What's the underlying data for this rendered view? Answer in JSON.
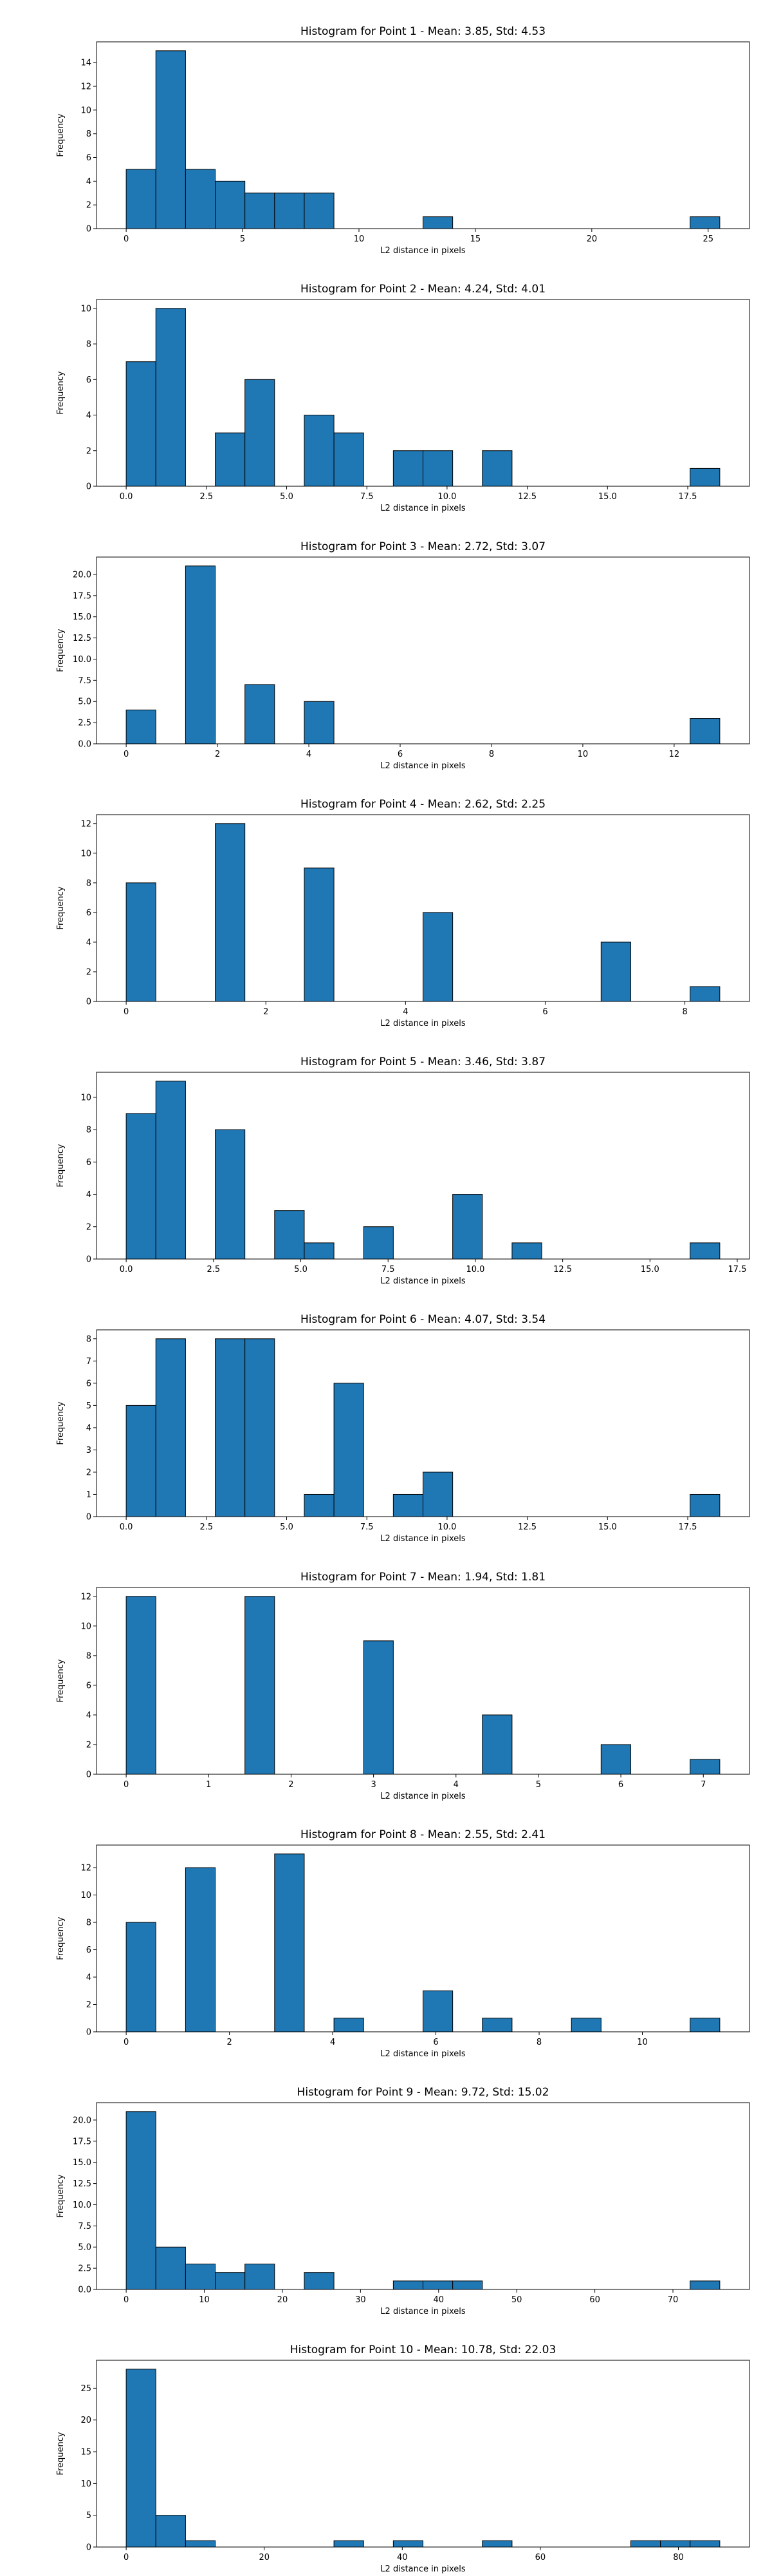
{
  "chart_data": [
    {
      "type": "bar",
      "title": "Histogram for Point 1 - Mean: 3.85, Std: 4.53",
      "xlabel": "L2 distance in pixels",
      "ylabel": "Frequency",
      "xlim": [
        -1.275,
        26.775
      ],
      "ylim": [
        0,
        15.75
      ],
      "xticks": [
        0,
        5,
        10,
        15,
        20,
        25
      ],
      "xtick_labels": [
        "0",
        "5",
        "10",
        "15",
        "20",
        "25"
      ],
      "yticks": [
        0,
        2,
        4,
        6,
        8,
        10,
        12,
        14
      ],
      "ytick_labels": [
        "0",
        "2",
        "4",
        "6",
        "8",
        "10",
        "12",
        "14"
      ],
      "bin_edges": [
        0,
        1.275,
        2.55,
        3.825,
        5.1,
        6.375,
        7.65,
        8.925,
        10.2,
        11.475,
        12.75,
        14.025,
        15.3,
        16.575,
        17.85,
        19.125,
        20.4,
        21.675,
        22.95,
        24.225,
        25.5
      ],
      "values": [
        5,
        15,
        5,
        4,
        3,
        3,
        3,
        0,
        0,
        0,
        1,
        0,
        0,
        0,
        0,
        0,
        0,
        0,
        0,
        1
      ],
      "color": "#1f77b4",
      "grid": false
    },
    {
      "type": "bar",
      "title": "Histogram for Point 2 - Mean: 4.24, Std: 4.01",
      "xlabel": "L2 distance in pixels",
      "ylabel": "Frequency",
      "xlim": [
        -0.925,
        19.425
      ],
      "ylim": [
        0,
        10.5
      ],
      "xticks": [
        0,
        2.5,
        5,
        7.5,
        10,
        12.5,
        15,
        17.5
      ],
      "xtick_labels": [
        "0.0",
        "2.5",
        "5.0",
        "7.5",
        "10.0",
        "12.5",
        "15.0",
        "17.5"
      ],
      "yticks": [
        0,
        2,
        4,
        6,
        8,
        10
      ],
      "ytick_labels": [
        "0",
        "2",
        "4",
        "6",
        "8",
        "10"
      ],
      "bin_edges": [
        0,
        0.925,
        1.85,
        2.775,
        3.7,
        4.625,
        5.55,
        6.475,
        7.4,
        8.325,
        9.25,
        10.175,
        11.1,
        12.025,
        12.95,
        13.875,
        14.8,
        15.725,
        16.65,
        17.575,
        18.5
      ],
      "values": [
        7,
        10,
        0,
        3,
        6,
        0,
        4,
        3,
        0,
        2,
        2,
        0,
        2,
        0,
        0,
        0,
        0,
        0,
        0,
        1
      ],
      "color": "#1f77b4",
      "grid": false
    },
    {
      "type": "bar",
      "title": "Histogram for Point 3 - Mean: 2.72, Std: 3.07",
      "xlabel": "L2 distance in pixels",
      "ylabel": "Frequency",
      "xlim": [
        -0.65,
        13.65
      ],
      "ylim": [
        0,
        22.05
      ],
      "xticks": [
        0,
        2,
        4,
        6,
        8,
        10,
        12
      ],
      "xtick_labels": [
        "0",
        "2",
        "4",
        "6",
        "8",
        "10",
        "12"
      ],
      "yticks": [
        0,
        2.5,
        5,
        7.5,
        10,
        12.5,
        15,
        17.5,
        20
      ],
      "ytick_labels": [
        "0.0",
        "2.5",
        "5.0",
        "7.5",
        "10.0",
        "12.5",
        "15.0",
        "17.5",
        "20.0"
      ],
      "bin_edges": [
        0,
        0.65,
        1.3,
        1.95,
        2.6,
        3.25,
        3.9,
        4.55,
        5.2,
        5.85,
        6.5,
        7.15,
        7.8,
        8.45,
        9.1,
        9.75,
        10.4,
        11.05,
        11.7,
        12.35,
        13
      ],
      "values": [
        4,
        0,
        21,
        0,
        7,
        0,
        5,
        0,
        0,
        0,
        0,
        0,
        0,
        0,
        0,
        0,
        0,
        0,
        0,
        3
      ],
      "color": "#1f77b4",
      "grid": false
    },
    {
      "type": "bar",
      "title": "Histogram for Point 4 - Mean: 2.62, Std: 2.25",
      "xlabel": "L2 distance in pixels",
      "ylabel": "Frequency",
      "xlim": [
        -0.425,
        8.925
      ],
      "ylim": [
        0,
        12.6
      ],
      "xticks": [
        0,
        2,
        4,
        6,
        8
      ],
      "xtick_labels": [
        "0",
        "2",
        "4",
        "6",
        "8"
      ],
      "yticks": [
        0,
        2,
        4,
        6,
        8,
        10,
        12
      ],
      "ytick_labels": [
        "0",
        "2",
        "4",
        "6",
        "8",
        "10",
        "12"
      ],
      "bin_edges": [
        0,
        0.425,
        0.85,
        1.275,
        1.7,
        2.125,
        2.55,
        2.975,
        3.4,
        3.825,
        4.25,
        4.675,
        5.1,
        5.525,
        5.95,
        6.375,
        6.8,
        7.225,
        7.65,
        8.075,
        8.5
      ],
      "values": [
        8,
        0,
        0,
        12,
        0,
        0,
        9,
        0,
        0,
        0,
        6,
        0,
        0,
        0,
        0,
        0,
        4,
        0,
        0,
        1
      ],
      "color": "#1f77b4",
      "grid": false
    },
    {
      "type": "bar",
      "title": "Histogram for Point 5 - Mean: 3.46, Std: 3.87",
      "xlabel": "L2 distance in pixels",
      "ylabel": "Frequency",
      "xlim": [
        -0.85,
        17.85
      ],
      "ylim": [
        0,
        11.55
      ],
      "xticks": [
        0,
        2.5,
        5,
        7.5,
        10,
        12.5,
        15,
        17.5
      ],
      "xtick_labels": [
        "0.0",
        "2.5",
        "5.0",
        "7.5",
        "10.0",
        "12.5",
        "15.0",
        "17.5"
      ],
      "yticks": [
        0,
        2,
        4,
        6,
        8,
        10
      ],
      "ytick_labels": [
        "0",
        "2",
        "4",
        "6",
        "8",
        "10"
      ],
      "bin_edges": [
        0,
        0.85,
        1.7,
        2.55,
        3.4,
        4.25,
        5.1,
        5.95,
        6.8,
        7.65,
        8.5,
        9.35,
        10.2,
        11.05,
        11.9,
        12.75,
        13.6,
        14.45,
        15.3,
        16.15,
        17
      ],
      "values": [
        9,
        11,
        0,
        8,
        0,
        3,
        1,
        0,
        2,
        0,
        0,
        4,
        0,
        1,
        0,
        0,
        0,
        0,
        0,
        1
      ],
      "color": "#1f77b4",
      "grid": false
    },
    {
      "type": "bar",
      "title": "Histogram for Point 6 - Mean: 4.07, Std: 3.54",
      "xlabel": "L2 distance in pixels",
      "ylabel": "Frequency",
      "xlim": [
        -0.925,
        19.425
      ],
      "ylim": [
        0,
        8.4
      ],
      "xticks": [
        0,
        2.5,
        5,
        7.5,
        10,
        12.5,
        15,
        17.5
      ],
      "xtick_labels": [
        "0.0",
        "2.5",
        "5.0",
        "7.5",
        "10.0",
        "12.5",
        "15.0",
        "17.5"
      ],
      "yticks": [
        0,
        1,
        2,
        3,
        4,
        5,
        6,
        7,
        8
      ],
      "ytick_labels": [
        "0",
        "1",
        "2",
        "3",
        "4",
        "5",
        "6",
        "7",
        "8"
      ],
      "bin_edges": [
        0,
        0.925,
        1.85,
        2.775,
        3.7,
        4.625,
        5.55,
        6.475,
        7.4,
        8.325,
        9.25,
        10.175,
        11.1,
        12.025,
        12.95,
        13.875,
        14.8,
        15.725,
        16.65,
        17.575,
        18.5
      ],
      "values": [
        5,
        8,
        0,
        8,
        8,
        0,
        1,
        6,
        0,
        1,
        2,
        0,
        0,
        0,
        0,
        0,
        0,
        0,
        0,
        1
      ],
      "color": "#1f77b4",
      "grid": false
    },
    {
      "type": "bar",
      "title": "Histogram for Point 7 - Mean: 1.94, Std: 1.81",
      "xlabel": "L2 distance in pixels",
      "ylabel": "Frequency",
      "xlim": [
        -0.36,
        7.56
      ],
      "ylim": [
        0,
        12.6
      ],
      "xticks": [
        0,
        1,
        2,
        3,
        4,
        5,
        6,
        7
      ],
      "xtick_labels": [
        "0",
        "1",
        "2",
        "3",
        "4",
        "5",
        "6",
        "7"
      ],
      "yticks": [
        0,
        2,
        4,
        6,
        8,
        10,
        12
      ],
      "ytick_labels": [
        "0",
        "2",
        "4",
        "6",
        "8",
        "10",
        "12"
      ],
      "bin_edges": [
        0,
        0.36,
        0.72,
        1.08,
        1.44,
        1.8,
        2.16,
        2.52,
        2.88,
        3.24,
        3.6,
        3.96,
        4.32,
        4.68,
        5.04,
        5.4,
        5.76,
        6.12,
        6.48,
        6.84,
        7.2
      ],
      "values": [
        12,
        0,
        0,
        0,
        12,
        0,
        0,
        0,
        9,
        0,
        0,
        0,
        4,
        0,
        0,
        0,
        2,
        0,
        0,
        1
      ],
      "color": "#1f77b4",
      "grid": false
    },
    {
      "type": "bar",
      "title": "Histogram for Point 8 - Mean: 2.55, Std: 2.41",
      "xlabel": "L2 distance in pixels",
      "ylabel": "Frequency",
      "xlim": [
        -0.575,
        12.075
      ],
      "ylim": [
        0,
        13.65
      ],
      "xticks": [
        0,
        2,
        4,
        6,
        8,
        10
      ],
      "xtick_labels": [
        "0",
        "2",
        "4",
        "6",
        "8",
        "10"
      ],
      "yticks": [
        0,
        2,
        4,
        6,
        8,
        10,
        12
      ],
      "ytick_labels": [
        "0",
        "2",
        "4",
        "6",
        "8",
        "10",
        "12"
      ],
      "bin_edges": [
        0,
        0.575,
        1.15,
        1.725,
        2.3,
        2.875,
        3.45,
        4.025,
        4.6,
        5.175,
        5.75,
        6.325,
        6.9,
        7.475,
        8.05,
        8.625,
        9.2,
        9.775,
        10.35,
        10.925,
        11.5
      ],
      "values": [
        8,
        0,
        12,
        0,
        0,
        13,
        0,
        1,
        0,
        0,
        3,
        0,
        1,
        0,
        0,
        1,
        0,
        0,
        0,
        1
      ],
      "color": "#1f77b4",
      "grid": false
    },
    {
      "type": "bar",
      "title": "Histogram for Point 9 - Mean: 9.72, Std: 15.02",
      "xlabel": "L2 distance in pixels",
      "ylabel": "Frequency",
      "xlim": [
        -3.8,
        79.8
      ],
      "ylim": [
        0,
        22.05
      ],
      "xticks": [
        0,
        10,
        20,
        30,
        40,
        50,
        60,
        70
      ],
      "xtick_labels": [
        "0",
        "10",
        "20",
        "30",
        "40",
        "50",
        "60",
        "70"
      ],
      "yticks": [
        0,
        2.5,
        5,
        7.5,
        10,
        12.5,
        15,
        17.5,
        20
      ],
      "ytick_labels": [
        "0.0",
        "2.5",
        "5.0",
        "7.5",
        "10.0",
        "12.5",
        "15.0",
        "17.5",
        "20.0"
      ],
      "bin_edges": [
        0,
        3.8,
        7.6,
        11.4,
        15.2,
        19,
        22.8,
        26.6,
        30.4,
        34.2,
        38,
        41.8,
        45.6,
        49.4,
        53.2,
        57,
        60.8,
        64.6,
        68.4,
        72.2,
        76
      ],
      "values": [
        21,
        5,
        3,
        2,
        3,
        0,
        2,
        0,
        0,
        1,
        1,
        1,
        0,
        0,
        0,
        0,
        0,
        0,
        0,
        1
      ],
      "color": "#1f77b4",
      "grid": false
    },
    {
      "type": "bar",
      "title": "Histogram for Point 10 - Mean: 10.78, Std: 22.03",
      "xlabel": "L2 distance in pixels",
      "ylabel": "Frequency",
      "xlim": [
        -4.3,
        90.3
      ],
      "ylim": [
        0,
        29.4
      ],
      "xticks": [
        0,
        20,
        40,
        60,
        80
      ],
      "xtick_labels": [
        "0",
        "20",
        "40",
        "60",
        "80"
      ],
      "yticks": [
        0,
        5,
        10,
        15,
        20,
        25
      ],
      "ytick_labels": [
        "0",
        "5",
        "10",
        "15",
        "20",
        "25"
      ],
      "bin_edges": [
        0,
        4.3,
        8.6,
        12.9,
        17.2,
        21.5,
        25.8,
        30.1,
        34.4,
        38.7,
        43,
        47.3,
        51.6,
        55.9,
        60.2,
        64.5,
        68.8,
        73.1,
        77.4,
        81.7,
        86
      ],
      "values": [
        28,
        5,
        1,
        0,
        0,
        0,
        0,
        1,
        0,
        1,
        0,
        0,
        1,
        0,
        0,
        0,
        0,
        1,
        1,
        1
      ],
      "color": "#1f77b4",
      "grid": false
    }
  ]
}
